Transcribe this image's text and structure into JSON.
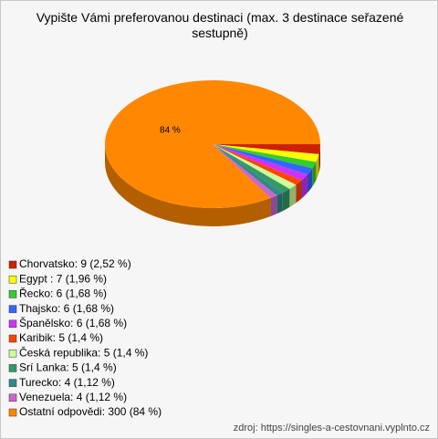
{
  "chart_data": {
    "type": "pie",
    "title": "Vypište Vámi preferovanou destinaci (max. 3 destinace seřazené sestupně)",
    "categories": [
      "Chorvatsko: 9 (2,52 %)",
      "Egypt : 7 (1,96 %)",
      "Řecko: 6 (1,68 %)",
      "Thajsko: 6 (1,68 %)",
      "Španělsko: 6 (1,68 %)",
      "Karibik: 5 (1,4 %)",
      "Česká republika: 5 (1,4 %)",
      "Srí Lanka: 5 (1,4 %)",
      "Turecko: 4 (1,12 %)",
      "Venezuela: 4 (1,12 %)",
      "Ostatní odpovědi: 300 (84 %)"
    ],
    "values": [
      2.52,
      1.96,
      1.68,
      1.68,
      1.68,
      1.4,
      1.4,
      1.4,
      1.12,
      1.12,
      84
    ],
    "value_labels": [
      null,
      null,
      null,
      null,
      null,
      null,
      null,
      null,
      null,
      null,
      "84 %"
    ],
    "colors": [
      "#cc2200",
      "#ffff00",
      "#33cc33",
      "#3366ff",
      "#cc33ff",
      "#ff4400",
      "#ccff99",
      "#339966",
      "#338888",
      "#cc66cc",
      "#ff8800"
    ],
    "source": "zdroj: https://singles-a-cestovnani.vyplnto.cz"
  }
}
